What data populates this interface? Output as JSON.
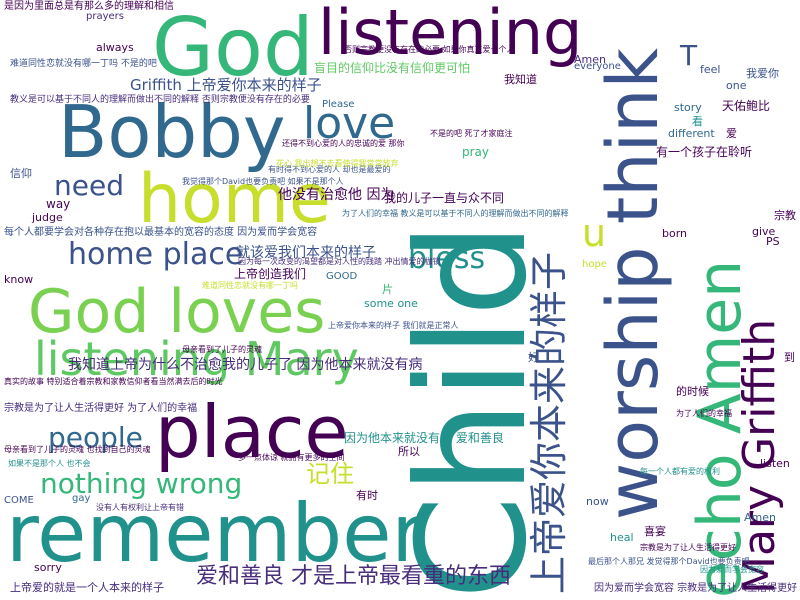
{
  "palette": {
    "purple": "#440154",
    "indigo": "#3b528b",
    "teal": "#21918c",
    "green": "#5ec962",
    "yellow": "#c8de2c"
  },
  "words": [
    {
      "text": "Child",
      "color": "#21918c"
    },
    {
      "text": "worship think",
      "color": "#3b528b"
    },
    {
      "text": "remember",
      "color": "#21918c"
    },
    {
      "text": "God loves",
      "color": "#7ad151"
    },
    {
      "text": "place",
      "color": "#440154"
    },
    {
      "text": "Bobby",
      "color": "#31688e"
    },
    {
      "text": "God",
      "color": "#35b779"
    },
    {
      "text": "listening",
      "color": "#440154"
    },
    {
      "text": "home",
      "color": "#c8de2c"
    },
    {
      "text": "echo Amen",
      "color": "#35b779"
    },
    {
      "text": "上帝爱你本来的样子",
      "color": "#3b528b"
    },
    {
      "text": "Mary Griffith",
      "color": "#440154"
    },
    {
      "text": "listening Mary",
      "color": "#5ec962"
    },
    {
      "text": "love",
      "color": "#31688e"
    },
    {
      "text": "home place",
      "color": "#3b528b"
    },
    {
      "text": "爱和善良 才是上帝最看重的东西",
      "color": "#472d7b"
    },
    {
      "text": "nothing wrong",
      "color": "#35b779"
    },
    {
      "text": "people",
      "color": "#31688e"
    },
    {
      "text": "need",
      "color": "#3b528b"
    },
    {
      "text": "bless",
      "color": "#21918c"
    },
    {
      "text": "u",
      "color": "#c8de2c"
    },
    {
      "text": "记住",
      "color": "#c8de2c"
    },
    {
      "text": "我知道上帝为什么不治愈我的儿子了 因为他本来就没有病",
      "color": "#472d7b"
    },
    {
      "text": "就该爱我们本来的样子",
      "color": "#3b528b"
    },
    {
      "text": "他没有治愈他 因为",
      "color": "#440154"
    },
    {
      "text": "我的儿子一直与众不同",
      "color": "#440154"
    },
    {
      "text": "Griffith 上帝爱你本来的样子",
      "color": "#3b528b"
    },
    {
      "text": "每个人都要学会对各种存在抱以最基本的宽容的态度 因为爱而学会宽容",
      "color": "#3b528b"
    },
    {
      "text": "因为他本来就没有病 爱和善良",
      "color": "#21918c"
    },
    {
      "text": "上帝创造我们",
      "color": "#440154"
    },
    {
      "text": "盲目的信仰比没有信仰更可怕",
      "color": "#5ec962"
    },
    {
      "text": "天佑鲍比",
      "color": "#440154"
    },
    {
      "text": "有一个孩子在聆听",
      "color": "#440154"
    },
    {
      "text": "是因为里面总是有那么多的理解和相信",
      "color": "#440154"
    },
    {
      "text": "T",
      "color": "#3b528b"
    },
    {
      "text": "pray",
      "color": "#35b779"
    },
    {
      "text": "Amen",
      "color": "#472d7b"
    },
    {
      "text": "everyone",
      "color": "#3b528b"
    },
    {
      "text": "always",
      "color": "#440154"
    },
    {
      "text": "prayers",
      "color": "#472d7b"
    },
    {
      "text": "信仰",
      "color": "#3b528b"
    },
    {
      "text": "way",
      "color": "#440154"
    },
    {
      "text": "judge",
      "color": "#440154"
    },
    {
      "text": "know",
      "color": "#440154"
    },
    {
      "text": "born",
      "color": "#440154"
    },
    {
      "text": "give",
      "color": "#440154"
    },
    {
      "text": "PS",
      "color": "#440154"
    },
    {
      "text": "story",
      "color": "#31688e"
    },
    {
      "text": "one",
      "color": "#3b528b"
    },
    {
      "text": "different",
      "color": "#31688e"
    },
    {
      "text": "我知道",
      "color": "#440154"
    },
    {
      "text": "我爱你",
      "color": "#3b528b"
    },
    {
      "text": "看",
      "color": "#21918c"
    },
    {
      "text": "爱",
      "color": "#440154"
    },
    {
      "text": "宗教",
      "color": "#440154"
    },
    {
      "text": "feel",
      "color": "#3b528b"
    },
    {
      "text": "Please",
      "color": "#31688e"
    },
    {
      "text": "GOOD",
      "color": "#31688e"
    },
    {
      "text": "hope",
      "color": "#c8de2c"
    },
    {
      "text": "heal",
      "color": "#21918c"
    },
    {
      "text": "喜宴",
      "color": "#440154"
    },
    {
      "text": "Amen",
      "color": "#31688e"
    },
    {
      "text": "sorry",
      "color": "#440154"
    },
    {
      "text": "COME",
      "color": "#3b528b"
    },
    {
      "text": "gay",
      "color": "#31688e"
    },
    {
      "text": "now",
      "color": "#3b528b"
    },
    {
      "text": "listen",
      "color": "#440154"
    },
    {
      "text": "的时候",
      "color": "#440154"
    },
    {
      "text": "所以",
      "color": "#440154"
    },
    {
      "text": "有时",
      "color": "#440154"
    },
    {
      "text": "好",
      "color": "#3b528b"
    },
    {
      "text": "到",
      "color": "#440154"
    },
    {
      "text": "片",
      "color": "#35b779"
    },
    {
      "text": "some one",
      "color": "#21918c"
    },
    {
      "text": "上帝爱的就是一个人本来的样子",
      "color": "#472d7b"
    },
    {
      "text": "因为爱而学会宽容 宗教是为了让人生活得更好",
      "color": "#472d7b"
    },
    {
      "text": "宗教是为了让人生活得更好 为了人们的幸福",
      "color": "#472d7b"
    },
    {
      "text": "真实的故事 特别适合着宗教和家教信仰者看当然满去后的时光",
      "color": "#440154"
    },
    {
      "text": "母亲看到了儿子的灵魂 也找到自己的灵魂",
      "color": "#440154"
    },
    {
      "text": "如果不是那个人 也不会",
      "color": "#21918c"
    },
    {
      "text": "教义是可以基于不同人的理解而做出不同的解释 否则宗教便没有存在的必要",
      "color": "#472d7b"
    },
    {
      "text": "难道同性恋就没有哪一丁吗 不是的吧",
      "color": "#3b528b"
    },
    {
      "text": "否则宗教便没有存在的必要 如果你真正爱一个人",
      "color": "#440154"
    },
    {
      "text": "还得不到心爱的人的忠诚的爱 那你",
      "color": "#440154"
    },
    {
      "text": "不是的吧 死了才家庭注",
      "color": "#440154"
    },
    {
      "text": "为了人们的幸福 教义是可以基于不同人的理解而做出不同的解释",
      "color": "#31688e"
    },
    {
      "text": "因为每一次改变的渴望都是对人性的践踏 冲出情爱的枷锁",
      "color": "#472d7b"
    },
    {
      "text": "多一点体谅 就拥有更多的空间",
      "color": "#440154"
    },
    {
      "text": "最后那个人那兄 发觉得那个David也要负责吧",
      "color": "#3b528b"
    },
    {
      "text": "母亲看到了儿子的灵魂",
      "color": "#440154"
    },
    {
      "text": "有时得不到心爱的人 却也是最爱的",
      "color": "#3b528b"
    },
    {
      "text": "我觉得那个David也要负责吧 如果不是那个人",
      "color": "#3b528b"
    },
    {
      "text": "花心 我出想不去看使得我常常放弃",
      "color": "#c8de2c"
    },
    {
      "text": "没有人有权利让上帝有错",
      "color": "#472d7b"
    },
    {
      "text": "难道同性恋就没有哪一丁吗",
      "color": "#c8de2c"
    },
    {
      "text": "上帝爱你本来的样子 我们就是正常人",
      "color": "#3b528b"
    },
    {
      "text": "因为爱而学会宽容",
      "color": "#21918c"
    },
    {
      "text": "宗教是为了让人生活得更好",
      "color": "#440154"
    },
    {
      "text": "为了人们的幸福",
      "color": "#440154"
    },
    {
      "text": "每一个人都有爱的权利",
      "color": "#21918c"
    }
  ]
}
